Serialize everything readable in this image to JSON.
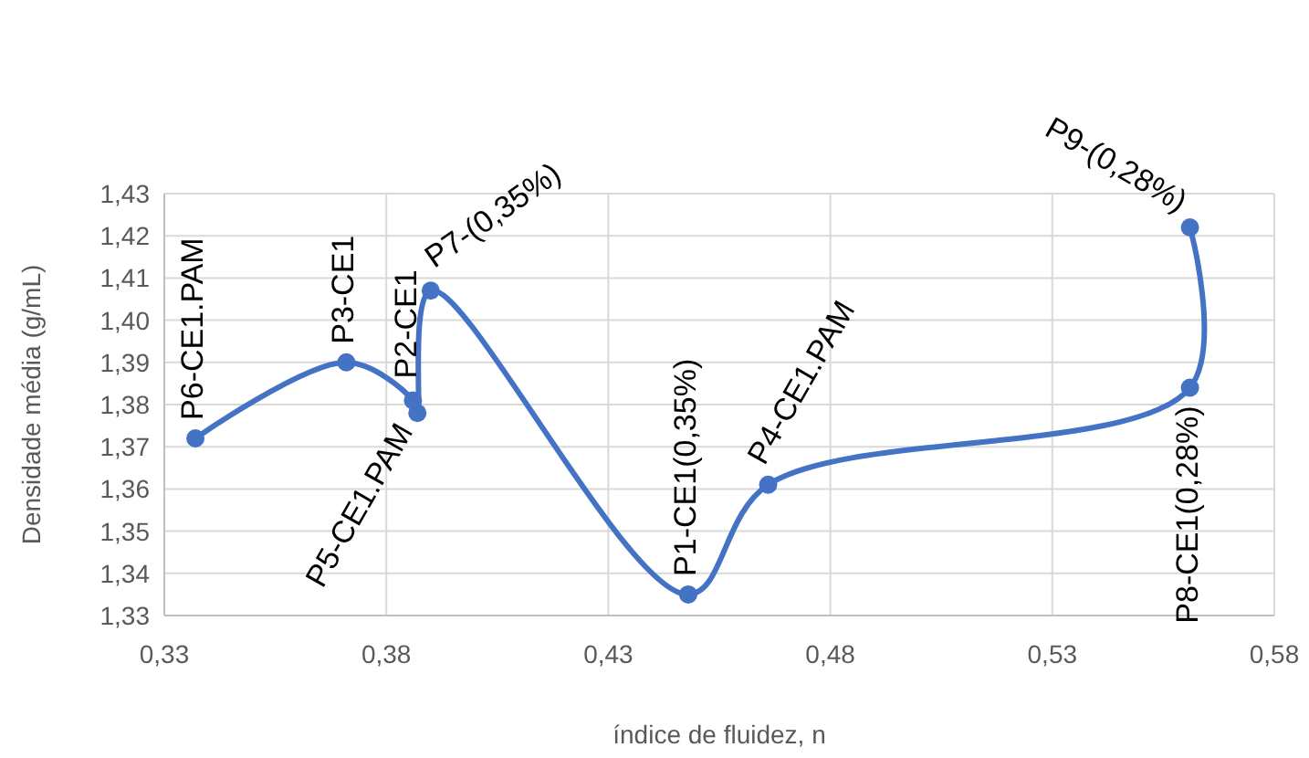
{
  "chart_data": {
    "type": "line",
    "xlabel": "índice de fluidez, n",
    "ylabel": "Densidade média (g/mL)",
    "x": [
      0.337,
      0.371,
      0.386,
      0.387,
      0.39,
      0.448,
      0.466,
      0.561,
      0.561
    ],
    "series": [
      {
        "color": "#4472c4",
        "values": [
          1.372,
          1.39,
          1.381,
          1.378,
          1.407,
          1.335,
          1.361,
          1.384,
          1.422
        ]
      }
    ],
    "xlim": [
      0.33,
      0.58
    ],
    "xticks": [
      {
        "value": 0.33,
        "label": "0,33"
      },
      {
        "value": 0.38,
        "label": "0,38"
      },
      {
        "value": 0.43,
        "label": "0,43"
      },
      {
        "value": 0.48,
        "label": "0,48"
      },
      {
        "value": 0.53,
        "label": "0,53"
      },
      {
        "value": 0.58,
        "label": "0,58"
      }
    ],
    "ylim": [
      1.33,
      1.43
    ],
    "yticks": [
      {
        "value": 1.33,
        "label": "1,33"
      },
      {
        "value": 1.34,
        "label": "1,34"
      },
      {
        "value": 1.35,
        "label": "1,35"
      },
      {
        "value": 1.36,
        "label": "1,36"
      },
      {
        "value": 1.37,
        "label": "1,37"
      },
      {
        "value": 1.38,
        "label": "1,38"
      },
      {
        "value": 1.39,
        "label": "1,39"
      },
      {
        "value": 1.4,
        "label": "1,40"
      },
      {
        "value": 1.41,
        "label": "1,41"
      },
      {
        "value": 1.42,
        "label": "1,42"
      },
      {
        "value": 1.43,
        "label": "1,43"
      }
    ],
    "grid": true,
    "marker": "circle",
    "line_style": "solid",
    "annotations": [
      {
        "text": "P6-CE1.PAM",
        "x": 0.337,
        "y": 1.372
      },
      {
        "text": "P3-CE1",
        "x": 0.371,
        "y": 1.39
      },
      {
        "text": "P2-CE1",
        "x": 0.386,
        "y": 1.381
      },
      {
        "text": "P5-CE1.PAM",
        "x": 0.387,
        "y": 1.378
      },
      {
        "text": "P7-(0,35%)",
        "x": 0.39,
        "y": 1.407
      },
      {
        "text": "P1-CE1(0,35%)",
        "x": 0.448,
        "y": 1.335
      },
      {
        "text": "P4-CE1.PAM",
        "x": 0.466,
        "y": 1.361
      },
      {
        "text": "P8-CE1(0,28%)",
        "x": 0.561,
        "y": 1.384
      },
      {
        "text": "P9-(0,28%)",
        "x": 0.561,
        "y": 1.422
      }
    ]
  }
}
